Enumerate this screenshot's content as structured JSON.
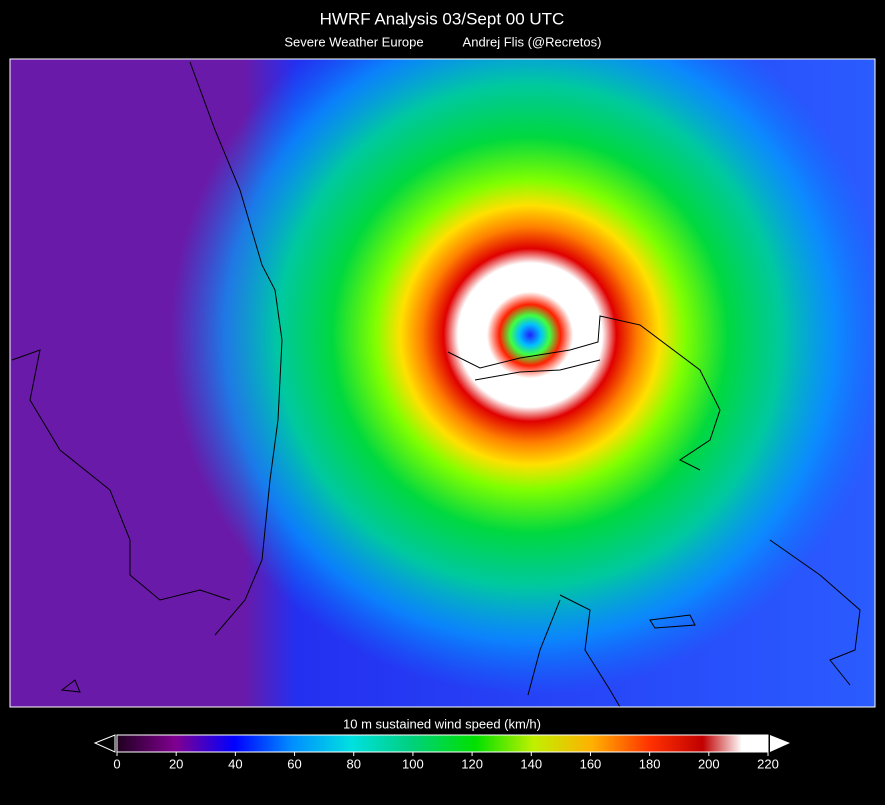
{
  "header": {
    "title": "HWRF Analysis 03/Sept 00 UTC",
    "source": "Severe Weather Europe",
    "author": "Andrej Flis (@Recretos)"
  },
  "colorbar": {
    "label": "10 m sustained wind speed (km/h)",
    "range": [
      0,
      220
    ],
    "ticks": [
      0,
      20,
      40,
      60,
      80,
      100,
      120,
      140,
      160,
      180,
      200,
      220
    ]
  }
}
